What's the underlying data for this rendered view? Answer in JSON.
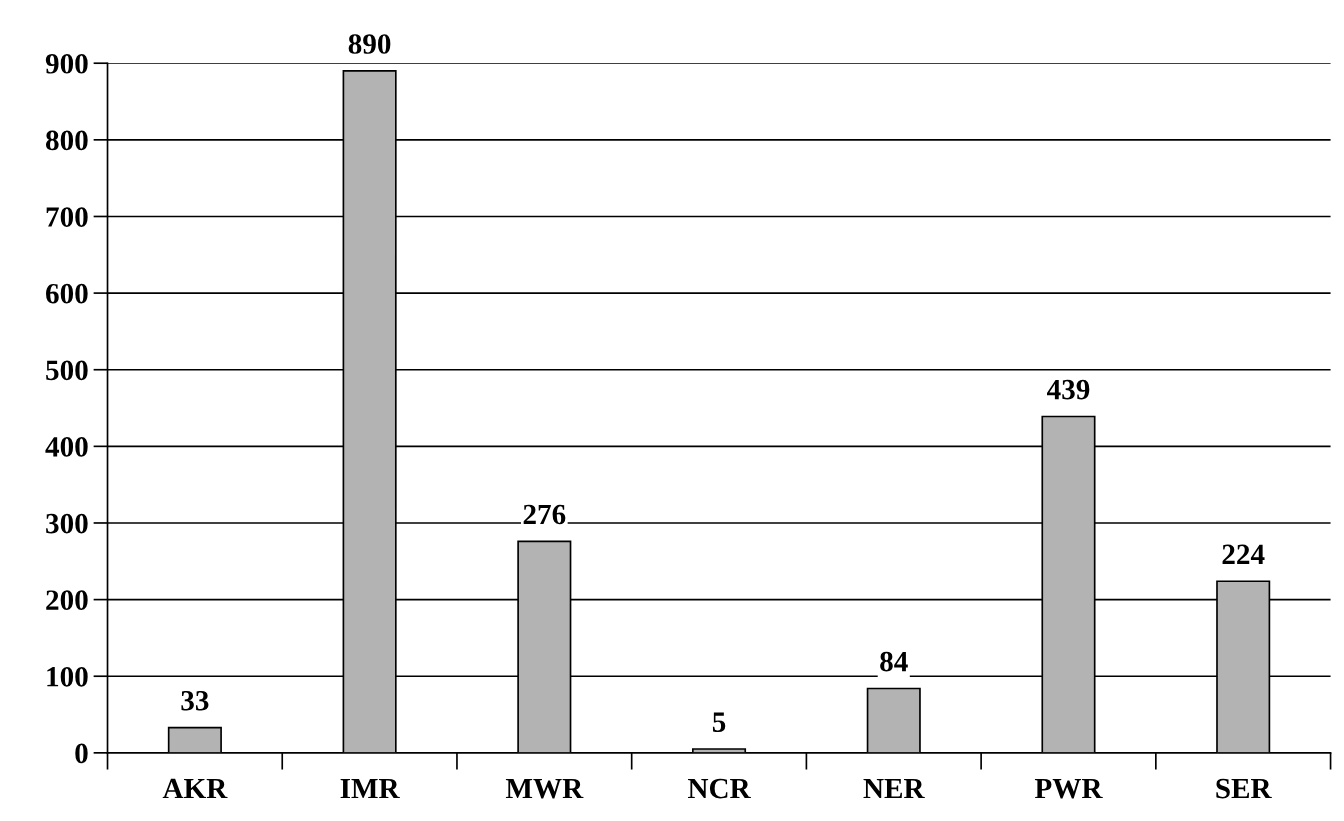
{
  "chart_data": {
    "type": "bar",
    "categories": [
      "AKR",
      "IMR",
      "MWR",
      "NCR",
      "NER",
      "PWR",
      "SER"
    ],
    "values": [
      33,
      890,
      276,
      5,
      84,
      439,
      224
    ],
    "color": "#b3b3b3",
    "ylim": [
      0,
      900
    ],
    "yticks": [
      0,
      100,
      200,
      300,
      400,
      500,
      600,
      700,
      800,
      900
    ],
    "grid": "y",
    "data_labels": true
  }
}
